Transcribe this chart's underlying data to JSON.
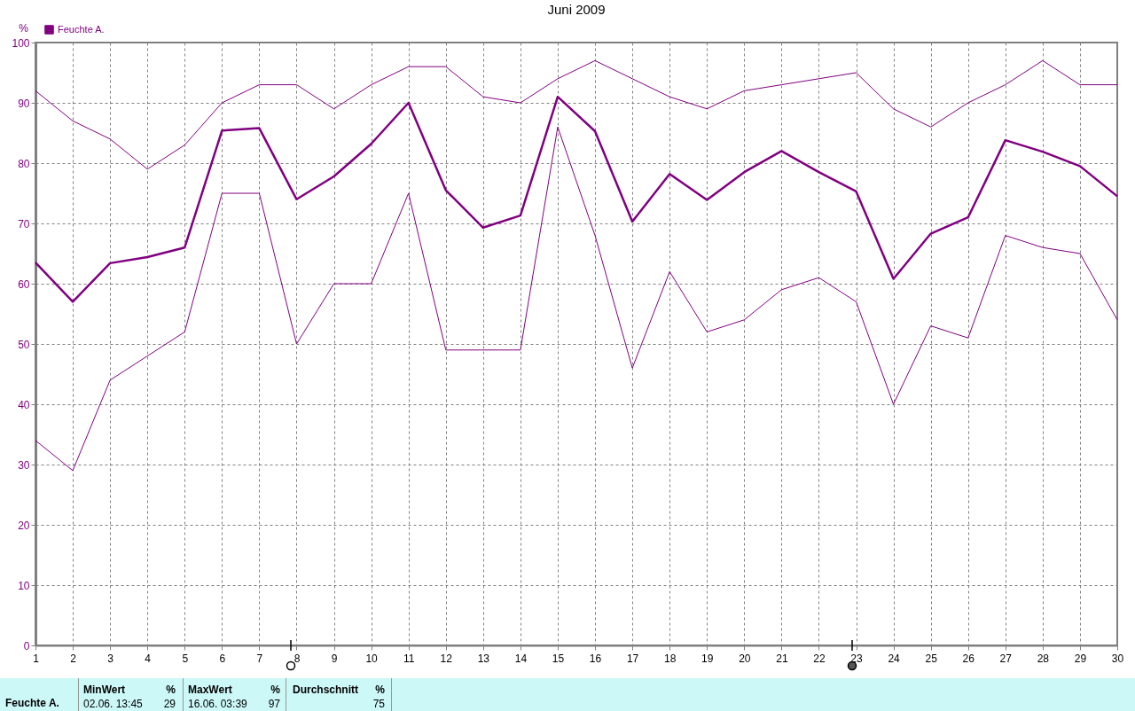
{
  "chart_data": {
    "type": "line",
    "title": "Juni 2009",
    "ylabel": "%",
    "x": [
      1,
      2,
      3,
      4,
      5,
      6,
      7,
      8,
      9,
      10,
      11,
      12,
      13,
      14,
      15,
      16,
      17,
      18,
      19,
      20,
      21,
      22,
      23,
      24,
      25,
      26,
      27,
      28,
      29,
      30
    ],
    "series": [
      {
        "color": "#800080",
        "values": [
          92,
          87,
          84,
          79,
          83,
          90,
          93,
          93,
          89,
          93,
          96,
          96,
          91,
          90,
          94,
          97,
          94,
          91,
          89,
          92,
          93,
          94,
          95,
          89,
          86,
          90,
          93,
          97,
          93,
          93
        ]
      },
      {
        "name": "Feuchte A.",
        "color": "#800080",
        "values": [
          63.5,
          57,
          63.4,
          64.4,
          66,
          85.4,
          85.8,
          74,
          77.8,
          83.2,
          90,
          75.5,
          69.3,
          71.3,
          91,
          85.3,
          70.3,
          78.2,
          73.9,
          78.5,
          82,
          78.5,
          75.3,
          60.8,
          68.3,
          71,
          83.8,
          81.9,
          79.5,
          74.5
        ]
      },
      {
        "color": "#800080",
        "values": [
          34,
          29,
          44,
          48,
          52,
          75,
          75,
          50,
          60,
          60,
          75,
          49,
          49,
          49,
          86,
          68,
          46,
          62,
          52,
          54,
          59,
          61,
          57,
          40,
          53,
          51,
          68,
          66,
          65,
          54
        ]
      }
    ],
    "xlim": [
      1,
      30
    ],
    "xticks": [
      1,
      2,
      3,
      4,
      5,
      6,
      7,
      8,
      9,
      10,
      11,
      12,
      13,
      14,
      15,
      16,
      17,
      18,
      19,
      20,
      21,
      22,
      23,
      24,
      25,
      26,
      27,
      28,
      29,
      30
    ],
    "ylim": [
      0,
      100
    ],
    "yticks": [
      0,
      10,
      20,
      30,
      40,
      50,
      60,
      70,
      80,
      90,
      100
    ],
    "grid": true,
    "legend": "top left",
    "marker": "none",
    "line_style": "solid",
    "annotations": [
      "Feuchte A.",
      "MinWert",
      "%",
      "02.06.  13:45",
      "29",
      "MaxWert",
      "%",
      "16.06.  03:39",
      "97",
      "Durchschnitt",
      "%",
      "75"
    ]
  }
}
